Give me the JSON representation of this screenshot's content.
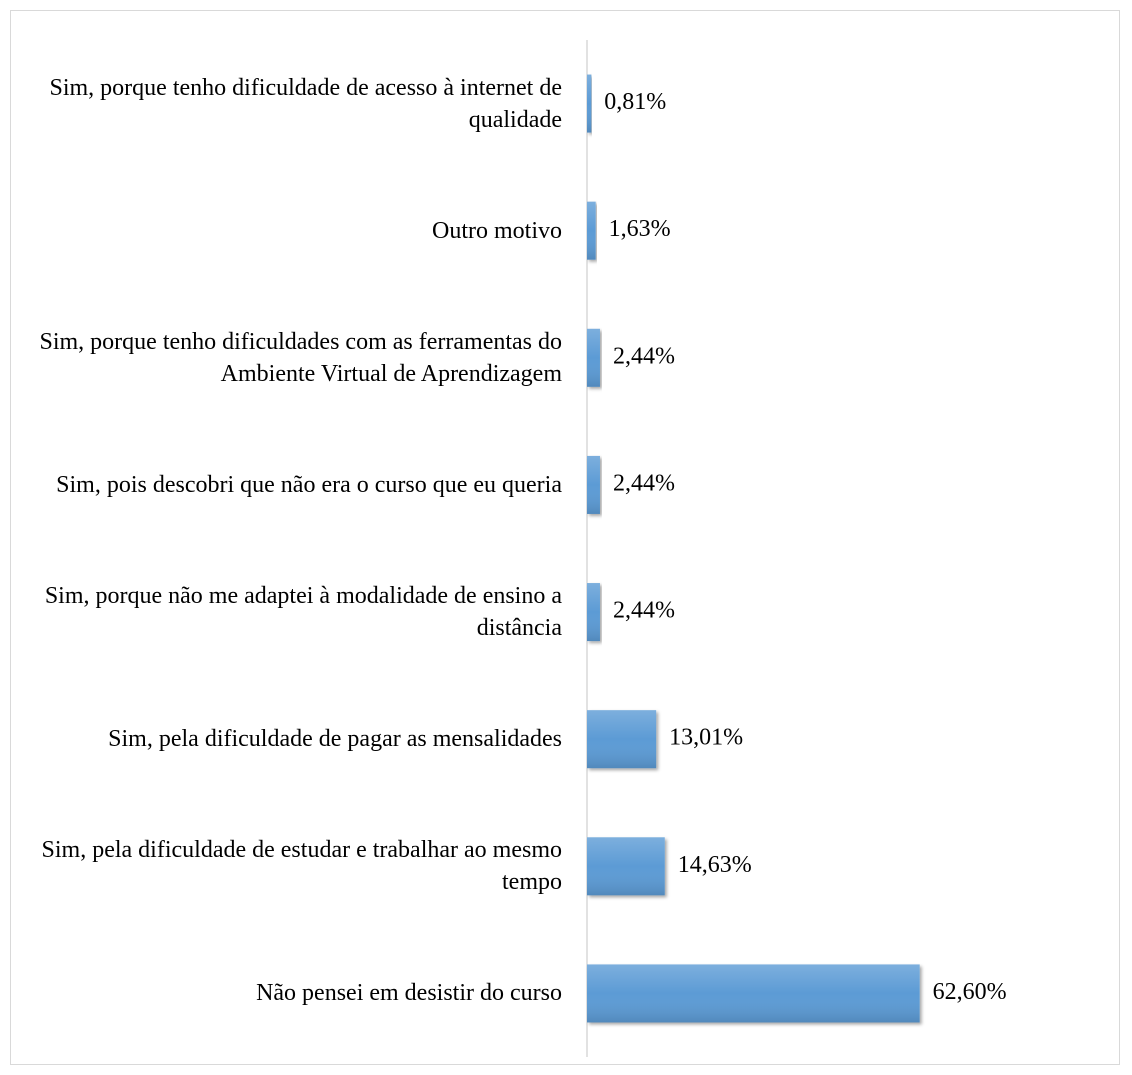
{
  "chart_data": {
    "type": "barh",
    "categories": [
      "Sim, porque tenho dificuldade de acesso à internet de qualidade",
      "Outro motivo",
      "Sim, porque tenho dificuldades com as ferramentas do Ambiente Virtual de Aprendizagem",
      "Sim, pois descobri que não era o curso que eu queria",
      "Sim, porque não me adaptei à modalidade de ensino a distância",
      "Sim, pela dificuldade de pagar as mensalidades",
      "Sim, pela dificuldade de estudar e trabalhar ao mesmo tempo",
      "Não pensei em desistir do curso"
    ],
    "values": [
      0.81,
      1.63,
      2.44,
      2.44,
      2.44,
      13.01,
      14.63,
      62.6
    ],
    "value_labels": [
      "0,81%",
      "1,63%",
      "2,44%",
      "2,44%",
      "2,44%",
      "13,01%",
      "14,63%",
      "62,60%"
    ],
    "color": "#5b9bd5",
    "xlim": [
      0,
      70
    ]
  }
}
